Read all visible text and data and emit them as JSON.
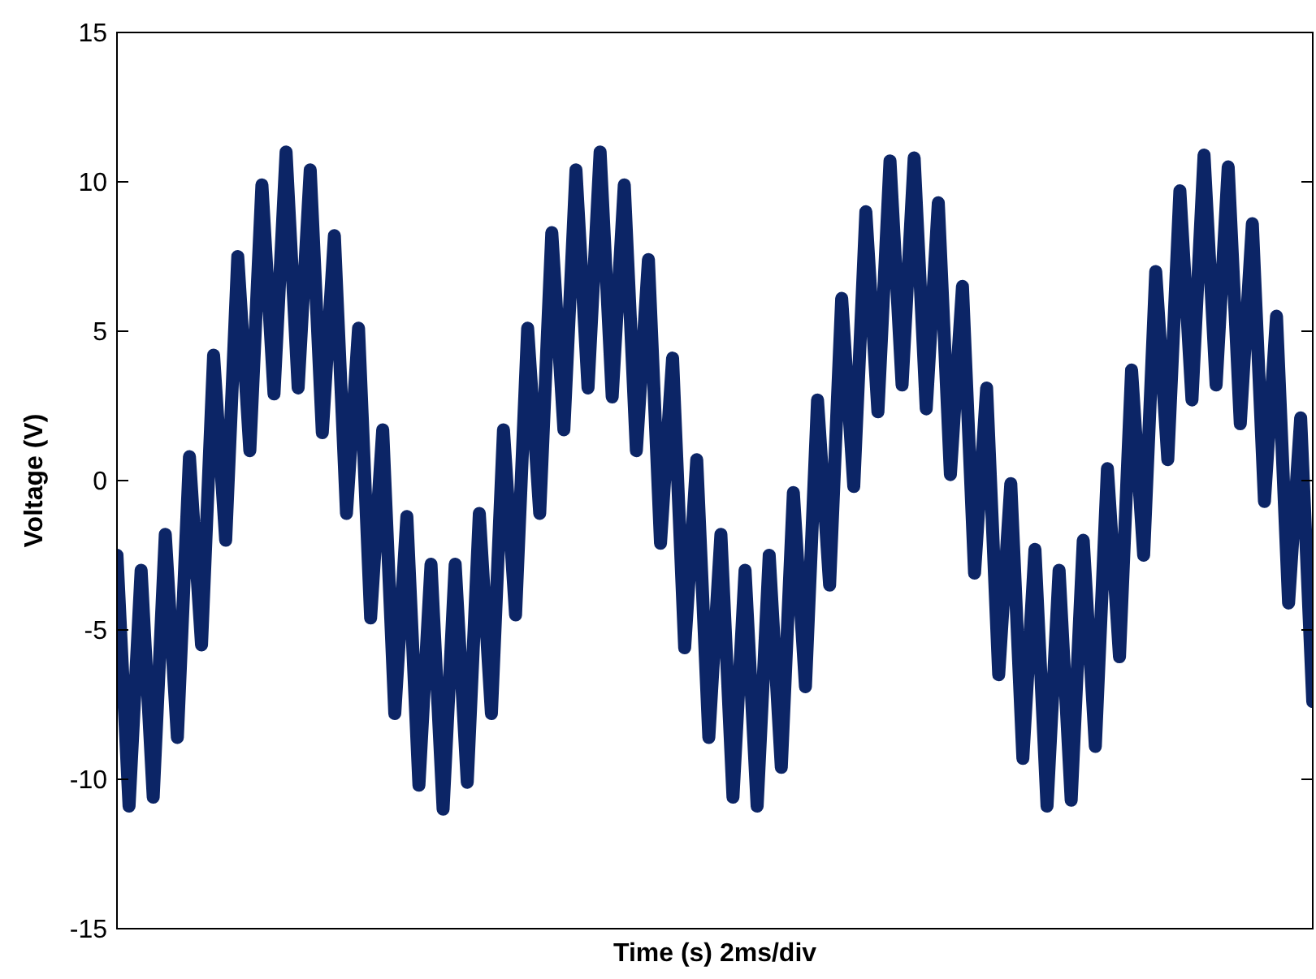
{
  "chart_data": {
    "type": "line",
    "xlabel": "Time (s) 2ms/div",
    "ylabel": "Voltage (V)",
    "categories": [
      null,
      null,
      null,
      null,
      null,
      null,
      null,
      null,
      null,
      null,
      null,
      null,
      null,
      null,
      null,
      null,
      null,
      null,
      null,
      null,
      null,
      null,
      null,
      null,
      null,
      null,
      null,
      null,
      null,
      null,
      null,
      null,
      null,
      null,
      null,
      null,
      null,
      null,
      null,
      null,
      null,
      null,
      null,
      null,
      null,
      null,
      null,
      null,
      null,
      null,
      null,
      null,
      null,
      null,
      null,
      null,
      null,
      null,
      null,
      null,
      null,
      null,
      null,
      null,
      null,
      null,
      null,
      null,
      null,
      null,
      null,
      null,
      null,
      null,
      null,
      null,
      null,
      null,
      null,
      null,
      null,
      null,
      null,
      null,
      null,
      null,
      null,
      null,
      null,
      null,
      null,
      null,
      null,
      null,
      null,
      null,
      null,
      null,
      null,
      null
    ],
    "series": [
      {
        "color": "#0c2566",
        "values": [
          -2.5,
          -10.9,
          -3.0,
          -10.6,
          -1.8,
          -8.6,
          0.8,
          -5.5,
          4.2,
          -2.0,
          7.5,
          1.0,
          9.9,
          2.9,
          11.0,
          3.1,
          10.4,
          1.6,
          8.2,
          -1.1,
          5.1,
          -4.6,
          1.7,
          -7.8,
          -1.2,
          -10.2,
          -2.8,
          -11.0,
          -2.8,
          -10.1,
          -1.1,
          -7.8,
          1.7,
          -4.5,
          5.1,
          -1.1,
          8.3,
          1.7,
          10.4,
          3.1,
          11.0,
          2.8,
          9.9,
          1.0,
          7.4,
          -2.1,
          4.1,
          -5.6,
          0.7,
          -8.6,
          -1.8,
          -10.6,
          -3.0,
          -10.9,
          -2.5,
          -9.6,
          -0.4,
          -6.9,
          2.7,
          -3.5,
          6.1,
          -0.2,
          9.0,
          2.3,
          10.7,
          3.2,
          10.8,
          2.4,
          9.3,
          0.2,
          6.5,
          -3.1,
          3.1,
          -6.5,
          -0.1,
          -9.3,
          -2.3,
          -10.9,
          -3.0,
          -10.7,
          -2.0,
          -8.9,
          0.4,
          -5.9,
          3.7,
          -2.5,
          7.0,
          0.7,
          9.7,
          2.7,
          10.9,
          3.2,
          10.5,
          1.9,
          8.6,
          -0.7,
          5.5,
          -4.1,
          2.1,
          -7.4
        ]
      }
    ],
    "ylim": [
      -15,
      15
    ],
    "yticks": [
      -15,
      -10,
      -5,
      0,
      5,
      10,
      15
    ],
    "grid": false
  }
}
